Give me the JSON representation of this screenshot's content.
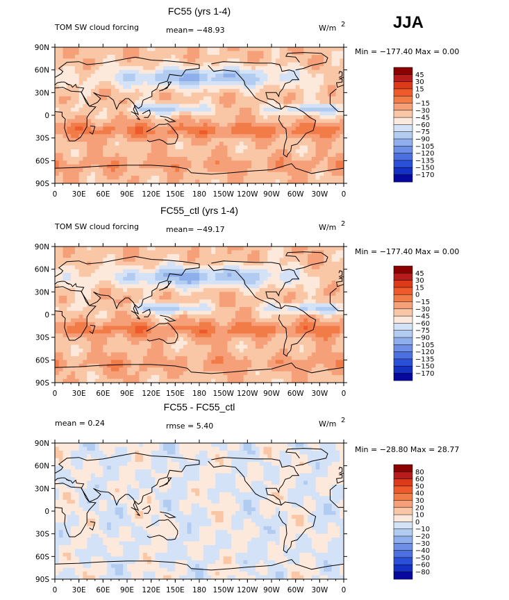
{
  "season_label": "JJA",
  "chart_data": [
    {
      "type": "heatmap",
      "title": "FC55 (yrs 1-4)",
      "left_label": "TOM SW cloud forcing",
      "center_label": "mean= −48.93",
      "units": "W/m",
      "units_sup": "2",
      "stats": "Min = −177.40 Max =    0.00",
      "x_ticks": [
        "0",
        "30E",
        "60E",
        "90E",
        "120E",
        "150E",
        "180",
        "150W",
        "120W",
        "90W",
        "60W",
        "30W",
        "0"
      ],
      "y_ticks": [
        "90N",
        "60N",
        "30N",
        "0",
        "30S",
        "60S",
        "90S"
      ],
      "colorbar_labels": [
        "45",
        "30",
        "15",
        "0",
        "−15",
        "−30",
        "−45",
        "−60",
        "−75",
        "−90",
        "−105",
        "−120",
        "−135",
        "−150",
        "−170"
      ],
      "colorbar_colors": [
        "#8b0000",
        "#b71c1c",
        "#dd3a1a",
        "#ee5a2c",
        "#f27c48",
        "#f6a07a",
        "#f9c6a6",
        "#fde9dc",
        "#d3e2f7",
        "#b2cbf1",
        "#8eafeb",
        "#6d8fe5",
        "#4c70e0",
        "#2a4fd9",
        "#1431c4",
        "#06089e"
      ]
    },
    {
      "type": "heatmap",
      "title": "FC55_ctl (yrs 1-4)",
      "left_label": "TOM SW cloud forcing",
      "center_label": "mean= −49.17",
      "units": "W/m",
      "units_sup": "2",
      "stats": "Min = −177.40 Max =    0.00",
      "x_ticks": [
        "0",
        "30E",
        "60E",
        "90E",
        "120E",
        "150E",
        "180",
        "150W",
        "120W",
        "90W",
        "60W",
        "30W",
        "0"
      ],
      "y_ticks": [
        "90N",
        "60N",
        "30N",
        "0",
        "30S",
        "60S",
        "90S"
      ],
      "colorbar_labels": [
        "45",
        "30",
        "15",
        "0",
        "−15",
        "−30",
        "−45",
        "−60",
        "−75",
        "−90",
        "−105",
        "−120",
        "−135",
        "−150",
        "−170"
      ],
      "colorbar_colors": [
        "#8b0000",
        "#b71c1c",
        "#dd3a1a",
        "#ee5a2c",
        "#f27c48",
        "#f6a07a",
        "#f9c6a6",
        "#fde9dc",
        "#d3e2f7",
        "#b2cbf1",
        "#8eafeb",
        "#6d8fe5",
        "#4c70e0",
        "#2a4fd9",
        "#1431c4",
        "#06089e"
      ]
    },
    {
      "type": "heatmap",
      "title": "FC55 - FC55_ctl",
      "left_label": "mean =    0.24",
      "center_label": "rmse =    5.40",
      "units": "W/m",
      "units_sup": "2",
      "stats": "Min = −28.80 Max =   28.77",
      "x_ticks": [
        "0",
        "30E",
        "60E",
        "90E",
        "120E",
        "150E",
        "180",
        "150W",
        "120W",
        "90W",
        "60W",
        "30W",
        "0"
      ],
      "y_ticks": [
        "90N",
        "60N",
        "30N",
        "0",
        "30S",
        "60S",
        "90S"
      ],
      "colorbar_labels": [
        "80",
        "60",
        "50",
        "40",
        "30",
        "20",
        "10",
        "0",
        "−10",
        "−20",
        "−30",
        "−40",
        "−50",
        "−60",
        "−80"
      ],
      "colorbar_colors": [
        "#8b0000",
        "#b71c1c",
        "#dd3a1a",
        "#ee5a2c",
        "#f27c48",
        "#f6a07a",
        "#f9c6a6",
        "#fde9dc",
        "#d3e2f7",
        "#b2cbf1",
        "#8eafeb",
        "#6d8fe5",
        "#4c70e0",
        "#2a4fd9",
        "#1431c4",
        "#06089e"
      ]
    }
  ]
}
